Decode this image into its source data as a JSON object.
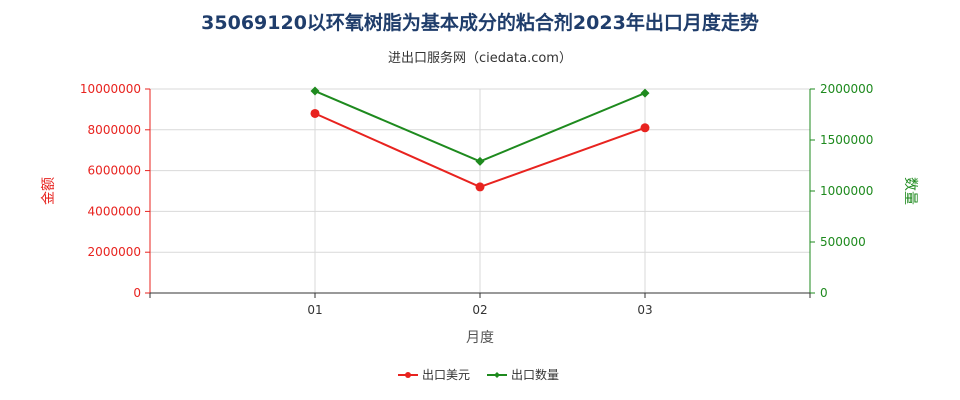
{
  "chart_data": {
    "type": "line",
    "title": "35069120以环氧树脂为基本成分的粘合剂2023年出口月度走势",
    "subtitle": "进出口服务网（ciedata.com）",
    "xlabel": "月度",
    "ylabel_left": "金额",
    "ylabel_right": "数量",
    "categories": [
      "01",
      "02",
      "03"
    ],
    "ylim_left": [
      0,
      10000000
    ],
    "ylim_right": [
      0,
      2000000
    ],
    "yticks_left": [
      "0",
      "2000000",
      "4000000",
      "6000000",
      "8000000",
      "10000000"
    ],
    "yticks_right": [
      "0",
      "500000",
      "1000000",
      "1500000",
      "2000000"
    ],
    "grid": true,
    "legend_position": "bottom",
    "series": [
      {
        "name": "出口美元",
        "axis": "left",
        "color": "#e8231f",
        "marker": "circle",
        "values": [
          8800000,
          5200000,
          8100000
        ]
      },
      {
        "name": "出口数量",
        "axis": "right",
        "color": "#1e8a1e",
        "marker": "diamond",
        "values": [
          1980000,
          1290000,
          1960000
        ]
      }
    ]
  }
}
